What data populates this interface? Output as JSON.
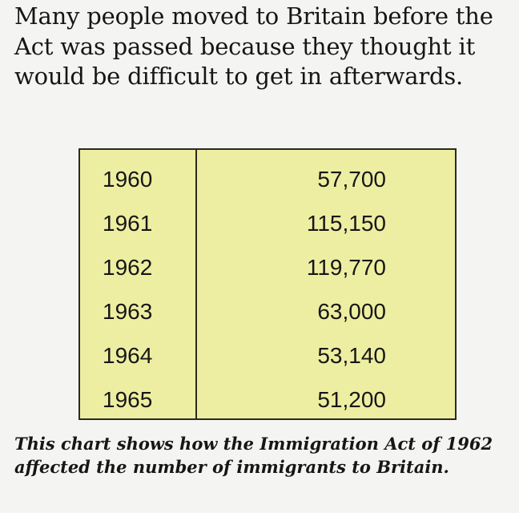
{
  "intro_text": "Many people moved to Britain before the Act was passed because they thought it would be difficult to get in afterwards.",
  "table": {
    "rows": [
      {
        "year": "1960",
        "value": "57,700"
      },
      {
        "year": "1961",
        "value": "115,150"
      },
      {
        "year": "1962",
        "value": "119,770"
      },
      {
        "year": "1963",
        "value": "63,000"
      },
      {
        "year": "1964",
        "value": "53,140"
      },
      {
        "year": "1965",
        "value": "51,200"
      }
    ]
  },
  "caption": "This chart shows how the Immigration Act of 1962 affected the number of immigrants to Britain.",
  "colors": {
    "table_background": "#edeea1",
    "page_background": "#f4f4f2"
  }
}
